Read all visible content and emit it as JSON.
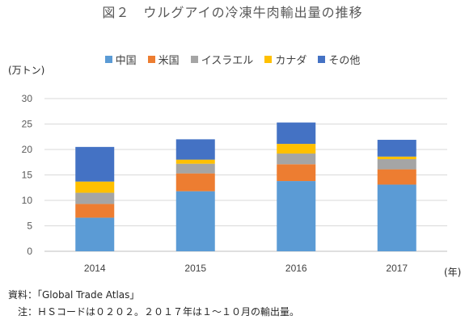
{
  "title": "図２　ウルグアイの冷凍牛肉輸出量の推移",
  "y_unit_label": "(万トン)",
  "x_unit_label": "(年)",
  "notes": {
    "source": "資料：「Global Trade Atlas」",
    "note": "　注：ＨＳコードは０２０２。２０１７年は１～１０月の輸出量。"
  },
  "chart_data": {
    "type": "bar",
    "stacked": true,
    "categories": [
      "2014",
      "2015",
      "2016",
      "2017"
    ],
    "ylim": [
      0,
      30
    ],
    "yticks": [
      0,
      5,
      10,
      15,
      20,
      25,
      30
    ],
    "grid": true,
    "legend_position": "top",
    "series": [
      {
        "name": "中国",
        "color": "#5b9bd5",
        "values": [
          6.6,
          11.8,
          13.8,
          13.1
        ]
      },
      {
        "name": "米国",
        "color": "#ed7d31",
        "values": [
          2.7,
          3.5,
          3.3,
          3.0
        ]
      },
      {
        "name": "イスラエル",
        "color": "#a5a5a5",
        "values": [
          2.2,
          1.9,
          2.1,
          2.0
        ]
      },
      {
        "name": "カナダ",
        "color": "#ffc000",
        "values": [
          2.2,
          0.8,
          1.9,
          0.5
        ]
      },
      {
        "name": "その他",
        "color": "#4472c4",
        "values": [
          6.8,
          4.0,
          4.2,
          3.3
        ]
      }
    ]
  }
}
